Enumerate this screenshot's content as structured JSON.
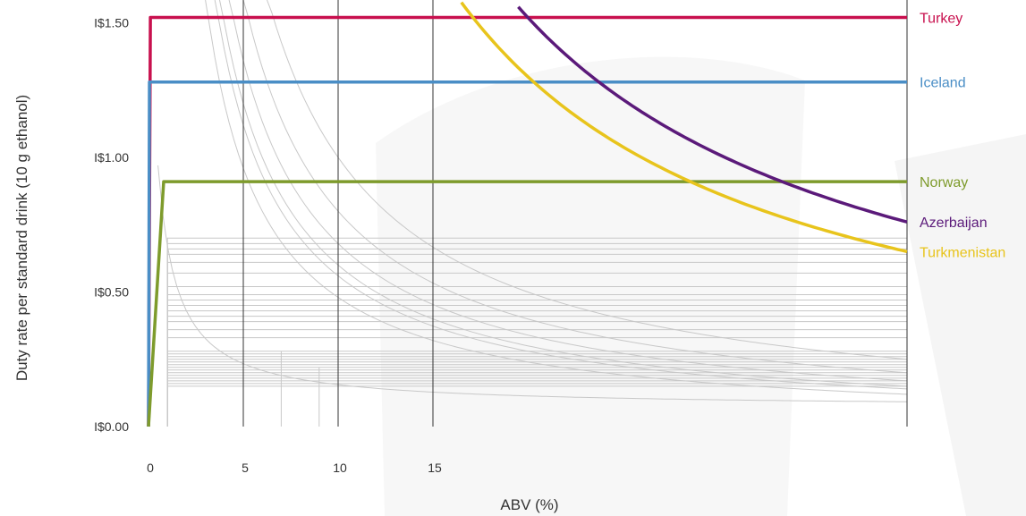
{
  "chart_data": {
    "type": "line",
    "title": "",
    "xlabel": "ABV (%)",
    "ylabel": "Duty rate per standard drink (10 g ethanol)",
    "xlim": [
      0,
      40
    ],
    "ylim": [
      0,
      1.5
    ],
    "x_ticks": [
      {
        "value": 0,
        "label": "0"
      },
      {
        "value": 5,
        "label": "5"
      },
      {
        "value": 10,
        "label": "10"
      },
      {
        "value": 15,
        "label": "15"
      }
    ],
    "y_ticks": [
      {
        "value": 0,
        "label": "I$0.00"
      },
      {
        "value": 0.5,
        "label": "I$0.50"
      },
      {
        "value": 1.0,
        "label": "I$1.00"
      },
      {
        "value": 1.5,
        "label": "I$1.50"
      }
    ],
    "grid_x": [
      5,
      10,
      15,
      40
    ],
    "highlighted_series": [
      {
        "name": "Turkey",
        "color": "#c8104e",
        "kind": "flat",
        "start": 0.1,
        "value": 1.52
      },
      {
        "name": "Iceland",
        "color": "#4a8ec6",
        "kind": "flat",
        "start": 0.05,
        "value": 1.28
      },
      {
        "name": "Norway",
        "color": "#7e9b2c",
        "kind": "flat",
        "start": 0.8,
        "value": 0.91
      },
      {
        "name": "Azerbaijan",
        "color": "#5b1a7a",
        "kind": "per_volume",
        "start": 19.5,
        "value_at_40": 0.76
      },
      {
        "name": "Turkmenistan",
        "color": "#e8c41c",
        "kind": "per_volume",
        "start": 16.5,
        "value_at_40": 0.65
      }
    ],
    "background_series": {
      "color": "#c8c8c8",
      "flat_values": [
        0.7,
        0.68,
        0.66,
        0.64,
        0.61,
        0.57,
        0.52,
        0.49,
        0.47,
        0.45,
        0.43,
        0.41,
        0.39,
        0.36,
        0.33,
        0.28,
        0.27,
        0.26,
        0.25,
        0.24,
        0.23,
        0.22,
        0.21,
        0.2,
        0.19,
        0.18,
        0.17,
        0.16,
        0.15
      ],
      "per_volume_values_at_40": [
        0.15,
        0.17,
        0.12,
        0.2,
        0.14,
        0.25
      ],
      "fixed_per_volume_at_40": 0.07
    }
  }
}
